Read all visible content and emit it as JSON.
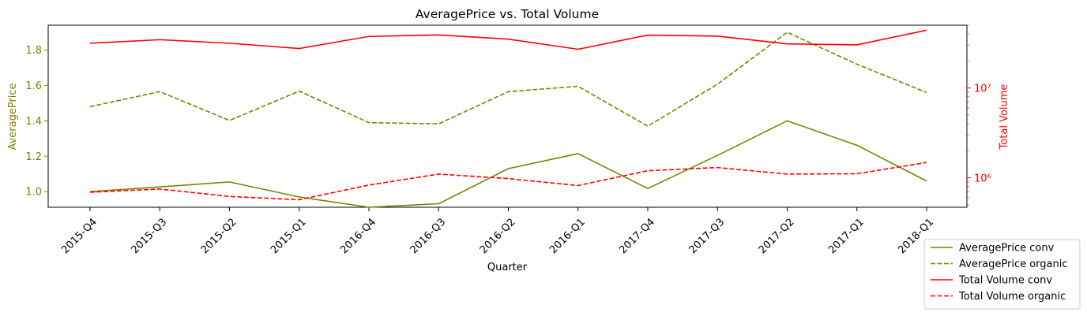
{
  "chart_data": {
    "type": "line",
    "title": "AveragePrice vs. Total Volume",
    "xlabel": "Quarter",
    "ylabel_left": "AveragePrice",
    "ylabel_right": "Total Volume",
    "categories": [
      "2015-Q4",
      "2015-Q3",
      "2015-Q2",
      "2015-Q1",
      "2016-Q4",
      "2016-Q3",
      "2016-Q2",
      "2016-Q1",
      "2017-Q4",
      "2017-Q3",
      "2017-Q2",
      "2017-Q1",
      "2018-Q1"
    ],
    "left_axis": {
      "ylim": [
        0.912,
        1.94
      ],
      "ticks": [
        1.0,
        1.2,
        1.4,
        1.6,
        1.8
      ],
      "tick_labels": [
        "1.0",
        "1.2",
        "1.4",
        "1.6",
        "1.8"
      ],
      "color": "#808000"
    },
    "right_axis": {
      "scale": "log",
      "ylim": [
        470000,
        50000000
      ],
      "ticks": [
        1000000,
        10000000
      ],
      "tick_labels": [
        "10⁶",
        "10⁷"
      ],
      "color": "#ff0000"
    },
    "series": [
      {
        "name": "AveragePrice conv",
        "axis": "left",
        "style": "solid",
        "color": "#808000",
        "values": [
          1.0,
          1.027,
          1.055,
          0.97,
          0.912,
          0.932,
          1.13,
          1.215,
          1.018,
          1.205,
          1.4,
          1.262,
          1.06
        ]
      },
      {
        "name": "AveragePrice organic",
        "axis": "left",
        "style": "dashed",
        "color": "#808000",
        "values": [
          1.48,
          1.565,
          1.402,
          1.568,
          1.39,
          1.383,
          1.565,
          1.595,
          1.37,
          1.607,
          1.9,
          1.72,
          1.56
        ]
      },
      {
        "name": "Total Volume conv",
        "axis": "right",
        "style": "solid",
        "color": "#ff0000",
        "values": [
          31500000,
          34500000,
          31500000,
          27500000,
          37500000,
          39000000,
          35000000,
          27000000,
          38800000,
          37800000,
          31000000,
          30200000,
          44000000
        ]
      },
      {
        "name": "Total Volume organic",
        "axis": "right",
        "style": "dashed",
        "color": "#ff0000",
        "values": [
          690000,
          750000,
          620000,
          570000,
          830000,
          1100000,
          980000,
          820000,
          1200000,
          1300000,
          1100000,
          1110000,
          1480000
        ]
      }
    ],
    "legend_placement": "bottom-right, outside",
    "grid": false
  }
}
